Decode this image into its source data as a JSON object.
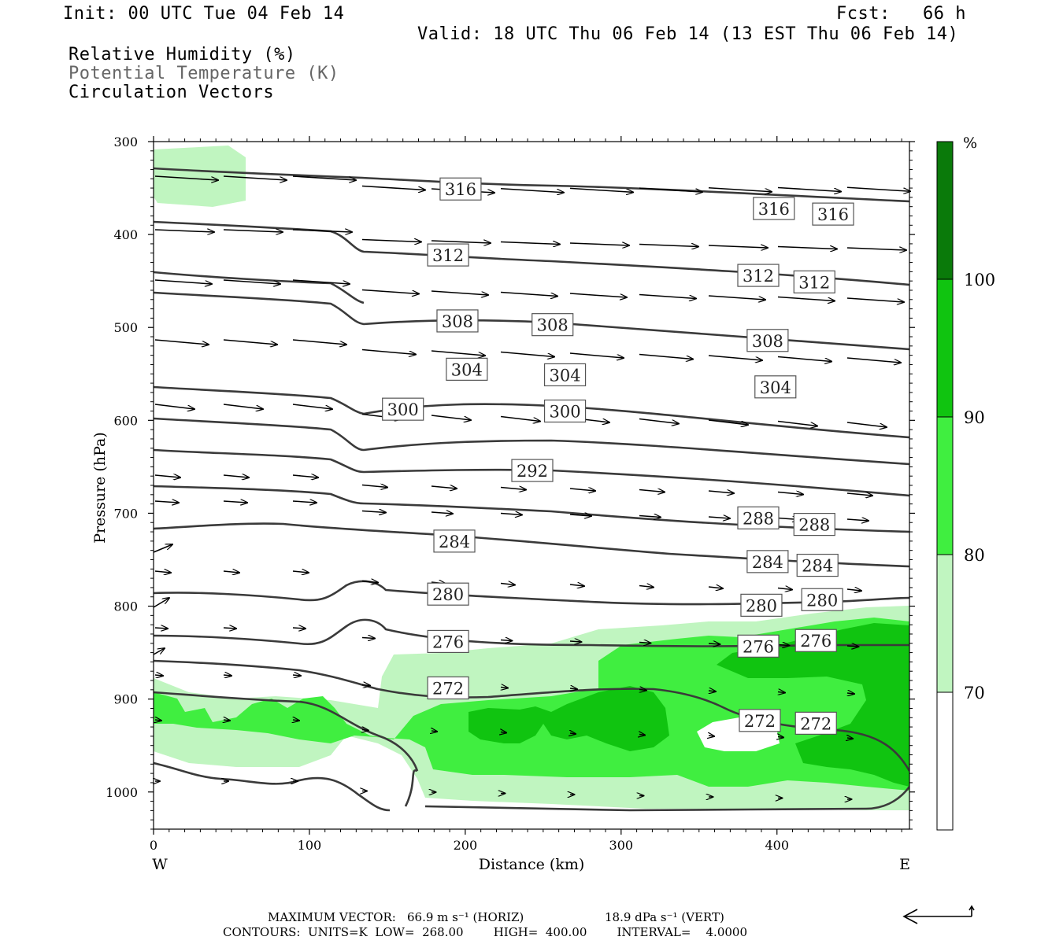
{
  "header": {
    "init": "Init: 00 UTC Tue 04 Feb 14",
    "fcst": "Fcst:   66 h",
    "valid": "Valid: 18 UTC Thu 06 Feb 14 (13 EST Thu 06 Feb 14)",
    "field1": "Relative Humidity (%)",
    "field2": "Potential Temperature (K)",
    "field3": "Circulation Vectors"
  },
  "footer": {
    "max_vector_label": "MAXIMUM VECTOR:",
    "horiz": "66.9 m s⁻¹ (HORIZ)",
    "vert": "18.9 dPa s⁻¹ (VERT)",
    "contours": "CONTOURS:  UNITS=K  LOW=  268.00        HIGH=  400.00        INTERVAL=    4.0000"
  },
  "colors": {
    "rh70": "#c0f5c0",
    "rh80": "#40ee40",
    "rh90": "#10c410",
    "rh100": "#0a7a0a",
    "contour": "#3a3a3a"
  },
  "chart_data": {
    "type": "cross-section",
    "xlabel": "Distance (km)",
    "ylabel": "Pressure (hPa)",
    "xlim": [
      0,
      485
    ],
    "ylim": [
      1040,
      300
    ],
    "xticks": [
      0,
      100,
      200,
      300,
      400
    ],
    "yticks": [
      300,
      400,
      500,
      600,
      700,
      800,
      900,
      1000
    ],
    "x_end_labels": {
      "left": "W",
      "right": "E"
    },
    "colorbar": {
      "unit": "%",
      "levels": [
        70,
        80,
        90,
        100
      ]
    },
    "theta_labels": [
      {
        "v": "316",
        "x": 197,
        "p": 351
      },
      {
        "v": "316",
        "x": 398,
        "p": 372
      },
      {
        "v": "316",
        "x": 436,
        "p": 378
      },
      {
        "v": "312",
        "x": 189,
        "p": 422
      },
      {
        "v": "312",
        "x": 388,
        "p": 444
      },
      {
        "v": "312",
        "x": 424,
        "p": 451
      },
      {
        "v": "308",
        "x": 195,
        "p": 493
      },
      {
        "v": "308",
        "x": 256,
        "p": 497
      },
      {
        "v": "308",
        "x": 394,
        "p": 514
      },
      {
        "v": "304",
        "x": 201,
        "p": 545
      },
      {
        "v": "304",
        "x": 264,
        "p": 551
      },
      {
        "v": "304",
        "x": 399,
        "p": 564
      },
      {
        "v": "300",
        "x": 160,
        "p": 588
      },
      {
        "v": "300",
        "x": 264,
        "p": 590
      },
      {
        "v": "292",
        "x": 243,
        "p": 654
      },
      {
        "v": "288",
        "x": 388,
        "p": 705
      },
      {
        "v": "288",
        "x": 424,
        "p": 712
      },
      {
        "v": "284",
        "x": 193,
        "p": 730
      },
      {
        "v": "284",
        "x": 394,
        "p": 752
      },
      {
        "v": "284",
        "x": 426,
        "p": 756
      },
      {
        "v": "280",
        "x": 189,
        "p": 787
      },
      {
        "v": "280",
        "x": 390,
        "p": 799
      },
      {
        "v": "280",
        "x": 429,
        "p": 793
      },
      {
        "v": "276",
        "x": 189,
        "p": 838
      },
      {
        "v": "276",
        "x": 388,
        "p": 843
      },
      {
        "v": "276",
        "x": 425,
        "p": 837
      },
      {
        "v": "272",
        "x": 189,
        "p": 888
      },
      {
        "v": "272",
        "x": 389,
        "p": 923
      },
      {
        "v": "272",
        "x": 425,
        "p": 926
      }
    ]
  }
}
